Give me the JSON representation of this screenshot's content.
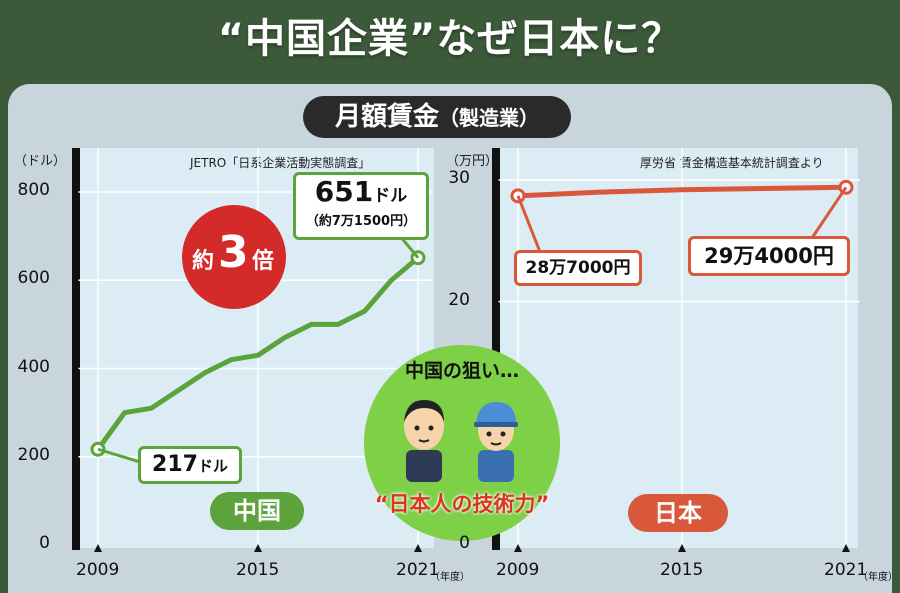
{
  "title": "“中国企業”なぜ日本に？",
  "subtitle": {
    "main": "月額賃金",
    "paren": "（製造業）"
  },
  "chart_data": [
    {
      "type": "line",
      "series": [
        {
          "name": "中国",
          "x": [
            2009,
            2010,
            2011,
            2012,
            2013,
            2014,
            2015,
            2016,
            2017,
            2018,
            2019,
            2020,
            2021
          ],
          "values": [
            217,
            300,
            310,
            350,
            390,
            420,
            430,
            470,
            500,
            500,
            530,
            600,
            651
          ]
        }
      ],
      "ylabel": "（ドル）",
      "ylim": [
        0,
        800
      ],
      "yticks": [
        "0",
        "200",
        "400",
        "600",
        "800"
      ],
      "xticks": [
        "2009",
        "2015",
        "2021"
      ],
      "xunit": "（年度）",
      "source": "JETRO「日系企業活動実態調査」",
      "color": "#5da33c"
    },
    {
      "type": "line",
      "series": [
        {
          "name": "日本",
          "x": [
            2009,
            2012,
            2015,
            2018,
            2021
          ],
          "values": [
            28.7,
            29.0,
            29.2,
            29.3,
            29.4
          ]
        }
      ],
      "ylabel": "（万円）",
      "ylim": [
        0,
        30
      ],
      "yticks": [
        "0",
        "20",
        "30"
      ],
      "xticks": [
        "2009",
        "2015",
        "2021"
      ],
      "xunit": "（年度）",
      "source": "厚労省 賃金構造基本統計調査より",
      "color": "#d9583c"
    }
  ],
  "annotations": {
    "china_start": {
      "num": "217",
      "unit": "ドル"
    },
    "china_end": {
      "num": "651",
      "unit": "ドル",
      "sub": "（約7万1500円）"
    },
    "japan_start": "28万7000円",
    "japan_end": "29万4000円",
    "ratio_prefix": "約",
    "ratio_num": "3",
    "ratio_suffix": "倍",
    "china_aim": "中国の狙い…",
    "quote": "“日本人の技術力”"
  },
  "colors": {
    "china": "#5da33c",
    "japan": "#d9583c",
    "badge": "#d42a2a",
    "aim_circle": "#7ed047"
  }
}
